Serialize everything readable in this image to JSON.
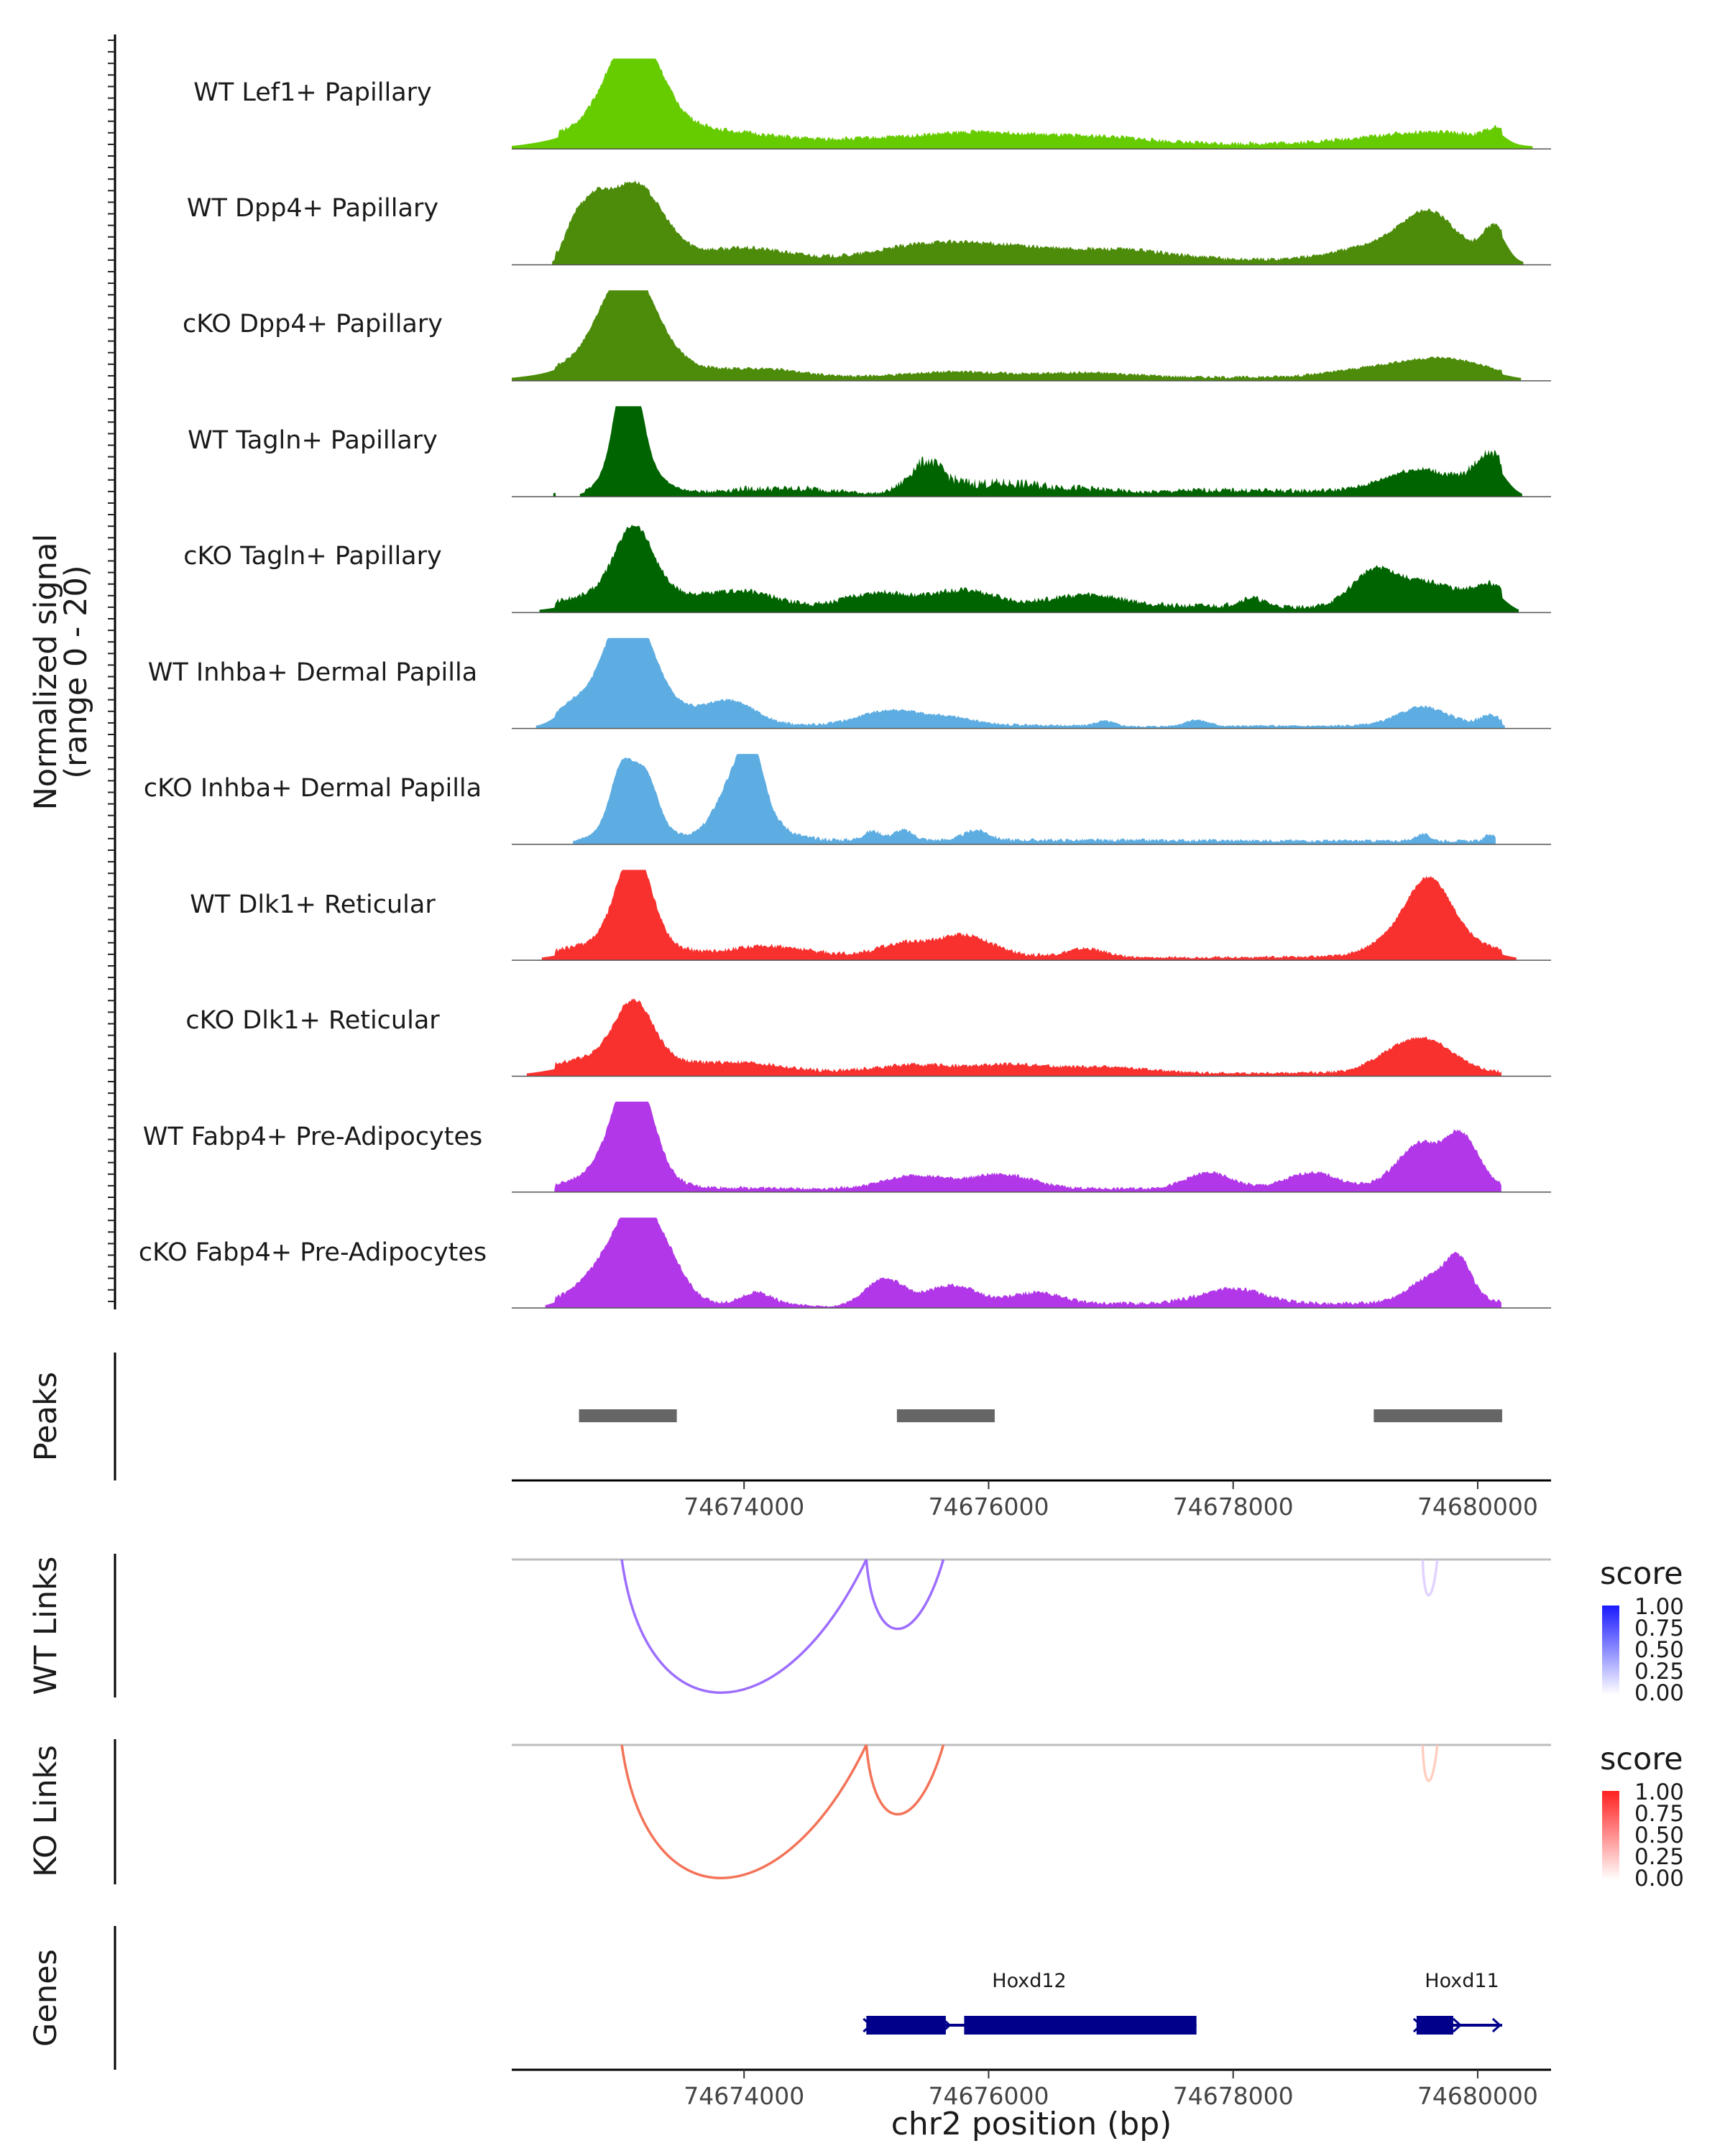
{
  "chart_data": {
    "type": "coverage_track",
    "chromosome": "chr2",
    "x_range": [
      74672100,
      74680600
    ],
    "coverage": {
      "ylabel_line1": "Normalized signal",
      "ylabel_line2": "(range 0 - 20)",
      "y_range": [
        0,
        20
      ],
      "tracks": [
        {
          "name": "WT Lef1+ Papillary",
          "color": "#66CC00",
          "baseline": [
            [
              74672480,
              1.2
            ],
            [
              74680200,
              1.2
            ]
          ],
          "peaks": [
            [
              74673100,
              20,
              210
            ],
            [
              74673100,
              5,
              500
            ],
            [
              74674000,
              1.5,
              400
            ],
            [
              74675200,
              1.2,
              500
            ],
            [
              74676000,
              2.2,
              400
            ],
            [
              74676900,
              1.5,
              400
            ],
            [
              74679600,
              2.6,
              500
            ],
            [
              74680150,
              2.2,
              80
            ]
          ]
        },
        {
          "name": "WT Dpp4+ Papillary",
          "color": "#4C8C0A",
          "baseline": [
            [
              74672450,
              1.2
            ],
            [
              74677850,
              1.2
            ],
            [
              74678750,
              0.9
            ],
            [
              74680200,
              1.2
            ]
          ],
          "peaks": [
            [
              74672600,
              4,
              70
            ],
            [
              74672750,
              9,
              120
            ],
            [
              74673100,
              17,
              230
            ],
            [
              74674000,
              2.6,
              350
            ],
            [
              74675500,
              3.2,
              400
            ],
            [
              74676200,
              2.4,
              400
            ],
            [
              74677100,
              2.1,
              400
            ],
            [
              74679400,
              4.5,
              450
            ],
            [
              74679600,
              7,
              200
            ],
            [
              74680140,
              6.5,
              90
            ]
          ]
        },
        {
          "name": "cKO Dpp4+ Papillary",
          "color": "#4C8C0A",
          "baseline": [
            [
              74672450,
              0.8
            ],
            [
              74680200,
              0.8
            ]
          ],
          "peaks": [
            [
              74673050,
              20,
              220
            ],
            [
              74673050,
              4,
              500
            ],
            [
              74674200,
              1.6,
              300
            ],
            [
              74675700,
              1.2,
              400
            ],
            [
              74676800,
              1.0,
              400
            ],
            [
              74679300,
              2.5,
              400
            ],
            [
              74679800,
              3.0,
              300
            ]
          ]
        },
        {
          "name": "WT Tagln+ Papillary",
          "color": "#006400",
          "baseline": [
            [
              74672700,
              0.5
            ],
            [
              74673400,
              0.5
            ],
            [
              74674000,
              1.8
            ],
            [
              74674550,
              1.8
            ],
            [
              74675000,
              0.8
            ],
            [
              74675120,
              0.8
            ],
            [
              74675400,
              3.0
            ],
            [
              74676200,
              3.0
            ],
            [
              74677250,
              1.0
            ],
            [
              74677750,
              1.5
            ],
            [
              74679200,
              1.2
            ],
            [
              74680200,
              2.5
            ]
          ],
          "peaks": [
            [
              74673050,
              24,
              100
            ],
            [
              74673100,
              7,
              200
            ],
            [
              74675500,
              5,
              120
            ],
            [
              74679500,
              4.5,
              280
            ],
            [
              74680100,
              7,
              120
            ],
            [
              74672450,
              0.8,
              20
            ]
          ]
        },
        {
          "name": "cKO Tagln+ Papillary",
          "color": "#006400",
          "baseline": [
            [
              74672450,
              1.5
            ],
            [
              74677550,
              1.5
            ],
            [
              74678150,
              1.5
            ],
            [
              74678600,
              1.2
            ],
            [
              74680200,
              1.8
            ]
          ],
          "peaks": [
            [
              74673100,
              14,
              150
            ],
            [
              74673100,
              4,
              400
            ],
            [
              74674000,
              3.0,
              250
            ],
            [
              74675100,
              3.0,
              250
            ],
            [
              74675800,
              3.5,
              250
            ],
            [
              74676800,
              2.5,
              300
            ],
            [
              74678150,
              1.8,
              100
            ],
            [
              74679150,
              7.5,
              180
            ],
            [
              74679600,
              5,
              250
            ],
            [
              74680100,
              4.2,
              120
            ]
          ]
        },
        {
          "name": "WT Inhba+ Dermal Papilla",
          "color": "#5DADE2",
          "baseline": [
            [
              74672450,
              0.8
            ],
            [
              74676200,
              0.8
            ],
            [
              74676700,
              0.7
            ],
            [
              74677200,
              0.5
            ],
            [
              74677600,
              0.5
            ],
            [
              74678150,
              0.6
            ],
            [
              74678800,
              0.6
            ],
            [
              74680200,
              1.0
            ]
          ],
          "peaks": [
            [
              74673050,
              20,
              180
            ],
            [
              74673100,
              7,
              350
            ],
            [
              74672600,
              2.5,
              120
            ],
            [
              74673900,
              5,
              200
            ],
            [
              74675200,
              3.3,
              250
            ],
            [
              74675700,
              1.5,
              200
            ],
            [
              74676950,
              1.1,
              80
            ],
            [
              74677700,
              1.4,
              100
            ],
            [
              74679550,
              4,
              200
            ],
            [
              74680100,
              2,
              80
            ]
          ]
        },
        {
          "name": "cKO Inhba+ Dermal Papilla",
          "color": "#5DADE2",
          "baseline": [
            [
              74672600,
              0.6
            ],
            [
              74673450,
              0.6
            ],
            [
              74673800,
              1.2
            ],
            [
              74674250,
              1.2
            ],
            [
              74675000,
              1.0
            ],
            [
              74675300,
              1.0
            ],
            [
              74675800,
              1.0
            ],
            [
              74676000,
              1.0
            ],
            [
              74679500,
              0.8
            ],
            [
              74680150,
              0.8
            ]
          ],
          "peaks": [
            [
              74673000,
              11,
              90
            ],
            [
              74673200,
              9,
              90
            ],
            [
              74673100,
              7,
              200
            ],
            [
              74673850,
              4,
              100
            ],
            [
              74674050,
              15,
              100
            ],
            [
              74674000,
              8,
              220
            ],
            [
              74675050,
              2,
              70
            ],
            [
              74675300,
              2.2,
              80
            ],
            [
              74675900,
              2.2,
              100
            ],
            [
              74679550,
              1.5,
              60
            ],
            [
              74680100,
              1.5,
              40
            ]
          ]
        },
        {
          "name": "WT Dlk1+ Reticular",
          "color": "#F8312F",
          "baseline": [
            [
              74672450,
              1.2
            ],
            [
              74675400,
              1.2
            ],
            [
              74676900,
              1.0
            ],
            [
              74677300,
              0.6
            ],
            [
              74678700,
              0.8
            ],
            [
              74680200,
              1.0
            ]
          ],
          "peaks": [
            [
              74673100,
              20,
              140
            ],
            [
              74673000,
              3.5,
              350
            ],
            [
              74674200,
              2.0,
              300
            ],
            [
              74675300,
              2.5,
              200
            ],
            [
              74675800,
              4.5,
              220
            ],
            [
              74676800,
              1.6,
              150
            ],
            [
              74679300,
              2.5,
              200
            ],
            [
              74679600,
              12,
              170
            ],
            [
              74679700,
              5,
              300
            ]
          ]
        },
        {
          "name": "cKO Dlk1+ Reticular",
          "color": "#F8312F",
          "baseline": [
            [
              74672450,
              1.2
            ],
            [
              74676600,
              1.0
            ],
            [
              74677200,
              0.8
            ],
            [
              74678100,
              0.7
            ],
            [
              74678700,
              0.8
            ],
            [
              74680200,
              0.9
            ]
          ],
          "peaks": [
            [
              74673100,
              12,
              150
            ],
            [
              74673000,
              4,
              400
            ],
            [
              74674000,
              1.8,
              300
            ],
            [
              74675400,
              1.5,
              300
            ],
            [
              74676200,
              1.6,
              300
            ],
            [
              74677000,
              1.2,
              300
            ],
            [
              74679300,
              3.0,
              200
            ],
            [
              74679600,
              6.5,
              220
            ]
          ]
        },
        {
          "name": "WT Fabp4+ Pre-Adipocytes",
          "color": "#B237E8",
          "baseline": [
            [
              74672450,
              1.0
            ],
            [
              74674000,
              1.0
            ],
            [
              74674500,
              0.8
            ],
            [
              74676200,
              1.0
            ],
            [
              74677000,
              0.8
            ],
            [
              74678200,
              1.0
            ],
            [
              74679000,
              1.0
            ],
            [
              74680200,
              1.2
            ]
          ],
          "peaks": [
            [
              74673100,
              20,
              150
            ],
            [
              74673000,
              7,
              250
            ],
            [
              74675400,
              2.8,
              250
            ],
            [
              74676100,
              3.0,
              250
            ],
            [
              74677800,
              3.4,
              180
            ],
            [
              74678650,
              3.4,
              200
            ],
            [
              74679550,
              10,
              200
            ],
            [
              74679850,
              8,
              100
            ],
            [
              74680000,
              4,
              100
            ]
          ]
        },
        {
          "name": "cKO Fabp4+ Pre-Adipocytes",
          "color": "#B237E8",
          "baseline": [
            [
              74672450,
              1.0
            ],
            [
              74674250,
              1.0
            ],
            [
              74674700,
              0.3
            ],
            [
              74675050,
              1.0
            ],
            [
              74676300,
              1.2
            ],
            [
              74676800,
              1.0
            ],
            [
              74677900,
              1.2
            ],
            [
              74678700,
              1.0
            ],
            [
              74680200,
              1.2
            ]
          ],
          "peaks": [
            [
              74673150,
              15,
              180
            ],
            [
              74672950,
              9,
              250
            ],
            [
              74673400,
              5,
              150
            ],
            [
              74674100,
              2.5,
              120
            ],
            [
              74675150,
              5.5,
              150
            ],
            [
              74675700,
              4,
              200
            ],
            [
              74676400,
              2.3,
              200
            ],
            [
              74678000,
              3.2,
              250
            ],
            [
              74679650,
              6,
              200
            ],
            [
              74679850,
              7,
              100
            ]
          ]
        }
      ]
    },
    "peaks": {
      "label": "Peaks",
      "regions": [
        [
          74672650,
          74673450
        ],
        [
          74675250,
          74676050
        ],
        [
          74679150,
          74680200
        ]
      ],
      "axis_ticks": [
        "74674000",
        "74676000",
        "74678000",
        "74680000"
      ],
      "axis_tick_values": [
        74674000,
        74676000,
        74678000,
        74680000
      ]
    },
    "links": [
      {
        "label": "WT Links",
        "palette": "purple",
        "legend_title": "score",
        "legend_ticks": [
          "1.00",
          "0.75",
          "0.50",
          "0.25",
          "0.00"
        ],
        "arcs": [
          {
            "start": 74673000,
            "end": 74675000,
            "score": 0.6
          },
          {
            "start": 74675000,
            "end": 74675630,
            "score": 0.55
          },
          {
            "start": 74679550,
            "end": 74679670,
            "score": 0.5
          }
        ]
      },
      {
        "label": "KO Links",
        "palette": "red",
        "legend_title": "score",
        "legend_ticks": [
          "1.00",
          "0.75",
          "0.50",
          "0.25",
          "0.00"
        ],
        "arcs": [
          {
            "start": 74673000,
            "end": 74675000,
            "score": 0.6
          },
          {
            "start": 74675000,
            "end": 74675630,
            "score": 0.55
          },
          {
            "start": 74679550,
            "end": 74679670,
            "score": 0.5
          }
        ]
      }
    ],
    "genes": {
      "label": "Genes",
      "items": [
        {
          "name": "Hoxd12",
          "start": 74675000,
          "end": 74677700,
          "exons": [
            [
              74675000,
              74675650
            ],
            [
              74675800,
              74677700
            ]
          ],
          "strand": "+"
        },
        {
          "name": "Hoxd11",
          "start": 74679500,
          "end": 74680200,
          "exons": [
            [
              74679500,
              74679800
            ]
          ],
          "strand": "+"
        }
      ],
      "color": "#00008B"
    },
    "xlabel": "chr2 position (bp)",
    "bottom_axis_ticks": [
      "74674000",
      "74676000",
      "74678000",
      "74680000"
    ],
    "bottom_axis_tick_values": [
      74674000,
      74676000,
      74678000,
      74680000
    ]
  }
}
